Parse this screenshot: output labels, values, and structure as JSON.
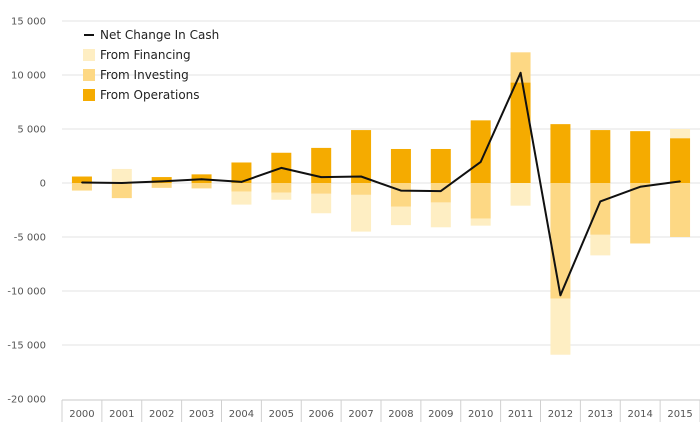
{
  "chart_data": {
    "type": "bar",
    "stacked": true,
    "categories": [
      "2000",
      "2001",
      "2002",
      "2003",
      "2004",
      "2005",
      "2006",
      "2007",
      "2008",
      "2009",
      "2010",
      "2011",
      "2012",
      "2013",
      "2014",
      "2015"
    ],
    "series": [
      {
        "name": "From Operations",
        "kind": "bar",
        "color": "#f5ab00",
        "values": [
          600,
          0,
          550,
          800,
          1900,
          2800,
          3250,
          4900,
          3150,
          3150,
          5800,
          9300,
          5450,
          4900,
          4800,
          4150
        ]
      },
      {
        "name": "From Investing",
        "kind": "bar",
        "color": "#fdd884",
        "values": [
          -700,
          -1400,
          -450,
          -500,
          -800,
          -900,
          -1000,
          -1100,
          -2200,
          -1800,
          -3300,
          2800,
          -10700,
          -4800,
          -5600,
          -5000
        ]
      },
      {
        "name": "From Financing",
        "kind": "bar",
        "color": "#feeec3",
        "values": [
          0,
          1300,
          0,
          0,
          -1200,
          -650,
          -1800,
          -3400,
          -1700,
          -2300,
          -650,
          -2100,
          -5200,
          -1900,
          0,
          850
        ]
      },
      {
        "name": "Net Change In Cash",
        "kind": "line",
        "color": "#111111",
        "values": [
          50,
          0,
          150,
          350,
          100,
          1400,
          550,
          600,
          -700,
          -750,
          1950,
          10200,
          -10400,
          -1700,
          -350,
          150
        ]
      }
    ],
    "legend_order": [
      "Net Change In Cash",
      "From Financing",
      "From Investing",
      "From Operations"
    ],
    "y_ticks": [
      "15 000",
      "10 000",
      "5 000",
      "0",
      "-5 000",
      "-10 000",
      "-15 000",
      "-20 000"
    ],
    "ylim": [
      -20000,
      15000
    ],
    "grid": true,
    "legend_position": "top-left",
    "title": "",
    "xlabel": "",
    "ylabel": ""
  }
}
